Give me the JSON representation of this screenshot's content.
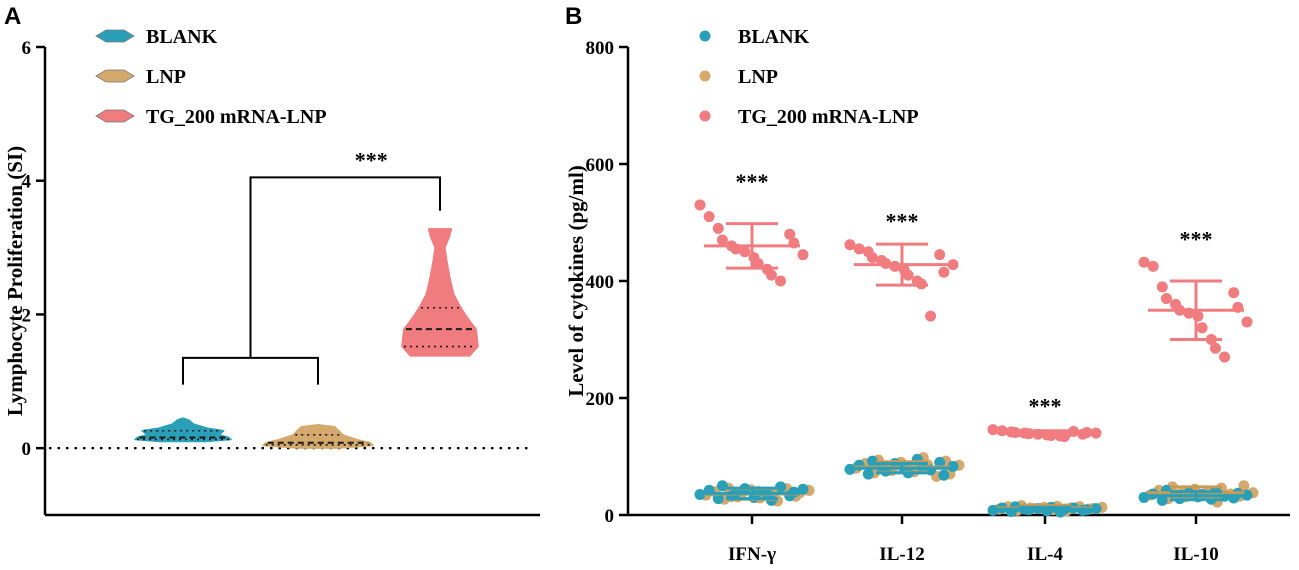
{
  "colors": {
    "blank": "#2AA0B8",
    "lnp": "#D5A96B",
    "tg": "#F07C7F",
    "axis": "#000000"
  },
  "chart_data": [
    {
      "panel": "A",
      "type": "violin",
      "ylabel": "Lymphocyte Proliferation (SI)",
      "ylim": [
        -1,
        6
      ],
      "yticks": [
        0,
        2,
        4,
        6
      ],
      "legend": [
        "BLANK",
        "LNP",
        "TG_200 mRNA-LNP"
      ],
      "legend_position": "top-left",
      "reference_line": 0,
      "series": [
        {
          "name": "BLANK",
          "color_key": "blank",
          "min": 0.1,
          "max": 0.45,
          "q1": 0.13,
          "median": 0.16,
          "q3": 0.26,
          "density": [
            [
              0.1,
              0.48
            ],
            [
              0.13,
              1.0
            ],
            [
              0.16,
              0.95
            ],
            [
              0.2,
              0.75
            ],
            [
              0.26,
              0.85
            ],
            [
              0.3,
              0.5
            ],
            [
              0.36,
              0.22
            ],
            [
              0.42,
              0.12
            ],
            [
              0.45,
              0.0
            ]
          ]
        },
        {
          "name": "LNP",
          "color_key": "lnp",
          "min": 0.0,
          "max": 0.35,
          "q1": 0.05,
          "median": 0.08,
          "q3": 0.2,
          "density": [
            [
              0.0,
              0.35
            ],
            [
              0.04,
              1.0
            ],
            [
              0.08,
              0.95
            ],
            [
              0.13,
              0.7
            ],
            [
              0.2,
              0.45
            ],
            [
              0.26,
              0.38
            ],
            [
              0.32,
              0.3
            ],
            [
              0.35,
              0.0
            ]
          ]
        },
        {
          "name": "TG_200 mRNA-LNP",
          "color_key": "tg",
          "min": 1.38,
          "max": 3.28,
          "q1": 1.52,
          "median": 1.78,
          "q3": 2.1,
          "density": [
            [
              1.38,
              0.78
            ],
            [
              1.52,
              1.0
            ],
            [
              1.65,
              0.98
            ],
            [
              1.78,
              0.95
            ],
            [
              1.95,
              0.72
            ],
            [
              2.1,
              0.55
            ],
            [
              2.3,
              0.36
            ],
            [
              2.55,
              0.26
            ],
            [
              2.8,
              0.18
            ],
            [
              3.0,
              0.13
            ],
            [
              3.15,
              0.24
            ],
            [
              3.28,
              0.3
            ]
          ]
        }
      ],
      "significance": {
        "label": "***",
        "between": "BLANK + LNP vs TG_200 mRNA-LNP"
      }
    },
    {
      "panel": "B",
      "type": "scatter",
      "ylabel": "Level of cytokines (pg/ml)",
      "categories": [
        "IFN-γ",
        "IL-12",
        "IL-4",
        "IL-10"
      ],
      "ylim": [
        0,
        800
      ],
      "yticks": [
        0,
        200,
        400,
        600,
        800
      ],
      "legend": [
        "BLANK",
        "LNP",
        "TG_200 mRNA-LNP"
      ],
      "legend_position": "top-left",
      "significance_labels": [
        "***",
        "***",
        "***",
        "***"
      ],
      "series": [
        {
          "name": "BLANK",
          "color_key": "blank",
          "mean": [
            37,
            80,
            10,
            33
          ],
          "sd": [
            9,
            8,
            3,
            7
          ],
          "points": [
            [
              35,
              42,
              28,
              50,
              32,
              38,
              45,
              30,
              40,
              36,
              25,
              48,
              33,
              39,
              44
            ],
            [
              78,
              85,
              70,
              92,
              82,
              75,
              88,
              80,
              72,
              95,
              84,
              77,
              90,
              68,
              83
            ],
            [
              8,
              12,
              6,
              14,
              10,
              9,
              11,
              7,
              13,
              5,
              10,
              12,
              8,
              9,
              11
            ],
            [
              30,
              36,
              25,
              42,
              33,
              28,
              38,
              31,
              35,
              27,
              40,
              32,
              29,
              37,
              34
            ]
          ]
        },
        {
          "name": "LNP",
          "color_key": "lnp",
          "mean": [
            36,
            82,
            12,
            38
          ],
          "sd": [
            9,
            9,
            4,
            10
          ],
          "points": [
            [
              34,
              40,
              27,
              46,
              31,
              37,
              43,
              29,
              39,
              35,
              24,
              45,
              32,
              38,
              42
            ],
            [
              80,
              88,
              72,
              94,
              84,
              76,
              90,
              82,
              74,
              98,
              86,
              66,
              92,
              70,
              85
            ],
            [
              10,
              14,
              8,
              16,
              12,
              11,
              13,
              9,
              15,
              7,
              12,
              14,
              10,
              11,
              13
            ],
            [
              34,
              42,
              28,
              48,
              37,
              31,
              44,
              35,
              40,
              22,
              46,
              36,
              32,
              50,
              38
            ]
          ]
        },
        {
          "name": "TG_200 mRNA-LNP",
          "color_key": "tg",
          "mean": [
            460,
            428,
            140,
            350
          ],
          "sd": [
            38,
            35,
            4,
            50
          ],
          "points": [
            [
              530,
              510,
              490,
              470,
              460,
              455,
              450,
              440,
              430,
              420,
              410,
              400,
              480,
              465,
              445
            ],
            [
              462,
              455,
              450,
              440,
              435,
              430,
              425,
              420,
              410,
              400,
              395,
              340,
              445,
              415,
              428
            ],
            [
              146,
              144,
              142,
              141,
              140,
              139,
              138,
              137,
              136,
              135,
              134,
              143,
              138,
              141,
              140
            ],
            [
              432,
              425,
              390,
              370,
              360,
              350,
              345,
              340,
              320,
              300,
              285,
              270,
              380,
              355,
              330
            ]
          ]
        }
      ]
    }
  ]
}
